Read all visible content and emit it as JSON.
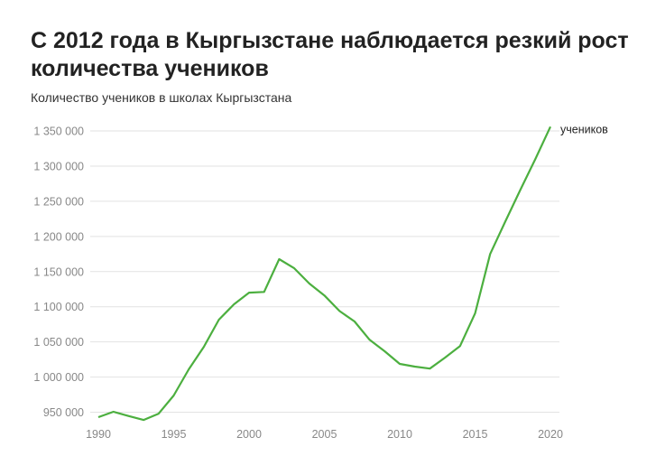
{
  "chart_data": {
    "type": "line",
    "title": "С 2012 года в Кыргызстане наблюдается резкий рост количества учеников",
    "subtitle": "Количество учеников в школах Кыргызстана",
    "xlabel": "",
    "ylabel": "",
    "grid": true,
    "x": [
      1990,
      1991,
      1992,
      1993,
      1994,
      1995,
      1996,
      1997,
      1998,
      1999,
      2000,
      2001,
      2002,
      2003,
      2004,
      2005,
      2006,
      2007,
      2008,
      2009,
      2010,
      2011,
      2012,
      2013,
      2014,
      2015,
      2016,
      2017,
      2018,
      2019,
      2020
    ],
    "series": [
      {
        "name": "учеников",
        "color": "#4caf3f",
        "values": [
          943000,
          950600,
          944600,
          939000,
          948000,
          973700,
          1011000,
          1043000,
          1081600,
          1103400,
          1120000,
          1121000,
          1167600,
          1154700,
          1133000,
          1116000,
          1094000,
          1079000,
          1053000,
          1036700,
          1018700,
          1014800,
          1012000,
          1027600,
          1044000,
          1090500,
          1175000,
          1221000,
          1266000,
          1310000,
          1356000
        ]
      }
    ],
    "xlim": [
      1990,
      2020
    ],
    "ylim": [
      950000,
      1350000
    ],
    "xticks": [
      1990,
      1995,
      2000,
      2005,
      2010,
      2015,
      2020
    ],
    "xtick_labels": [
      "1990",
      "1995",
      "2000",
      "2005",
      "2010",
      "2015",
      "2020"
    ],
    "yticks": [
      950000,
      1000000,
      1050000,
      1100000,
      1150000,
      1200000,
      1250000,
      1300000,
      1350000
    ],
    "ytick_labels": [
      "950 000",
      "1 000 000",
      "1 050 000",
      "1 100 000",
      "1 150 000",
      "1 200 000",
      "1 250 000",
      "1 300 000",
      "1 350 000"
    ]
  }
}
